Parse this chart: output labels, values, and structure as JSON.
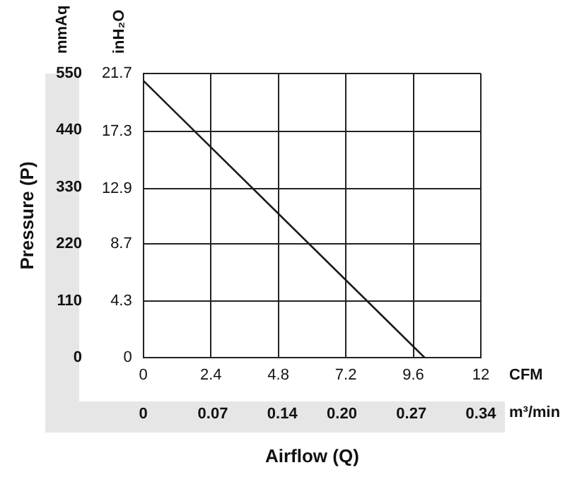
{
  "chart_data": {
    "type": "line",
    "xlabel": "Airflow (Q)",
    "ylabel": "Pressure (P)",
    "x": [
      0,
      10
    ],
    "series": [
      {
        "color": "#1a1a1a",
        "values": [
          536,
          0
        ]
      }
    ],
    "xlim": [
      0,
      12
    ],
    "xticks": [
      0,
      2.4,
      4.8,
      7.2,
      9.6,
      12
    ],
    "x2lim": [
      0,
      0.34
    ],
    "x2ticks": [
      0,
      0.07,
      0.14,
      {
        "value": 0.2,
        "label": "0.20"
      },
      0.27,
      0.34
    ],
    "ylim": [
      0,
      550
    ],
    "yticks": [
      0,
      110,
      220,
      330,
      440,
      550
    ],
    "y2lim": [
      0,
      21.7
    ],
    "y2ticks": [
      0,
      4.3,
      8.7,
      12.9,
      17.3,
      21.7
    ],
    "annotations": [
      "mmAq",
      "inH₂O",
      "CFM",
      "m³/min"
    ],
    "grid": true,
    "legend": false,
    "marker": "none",
    "line_style": "solid"
  }
}
